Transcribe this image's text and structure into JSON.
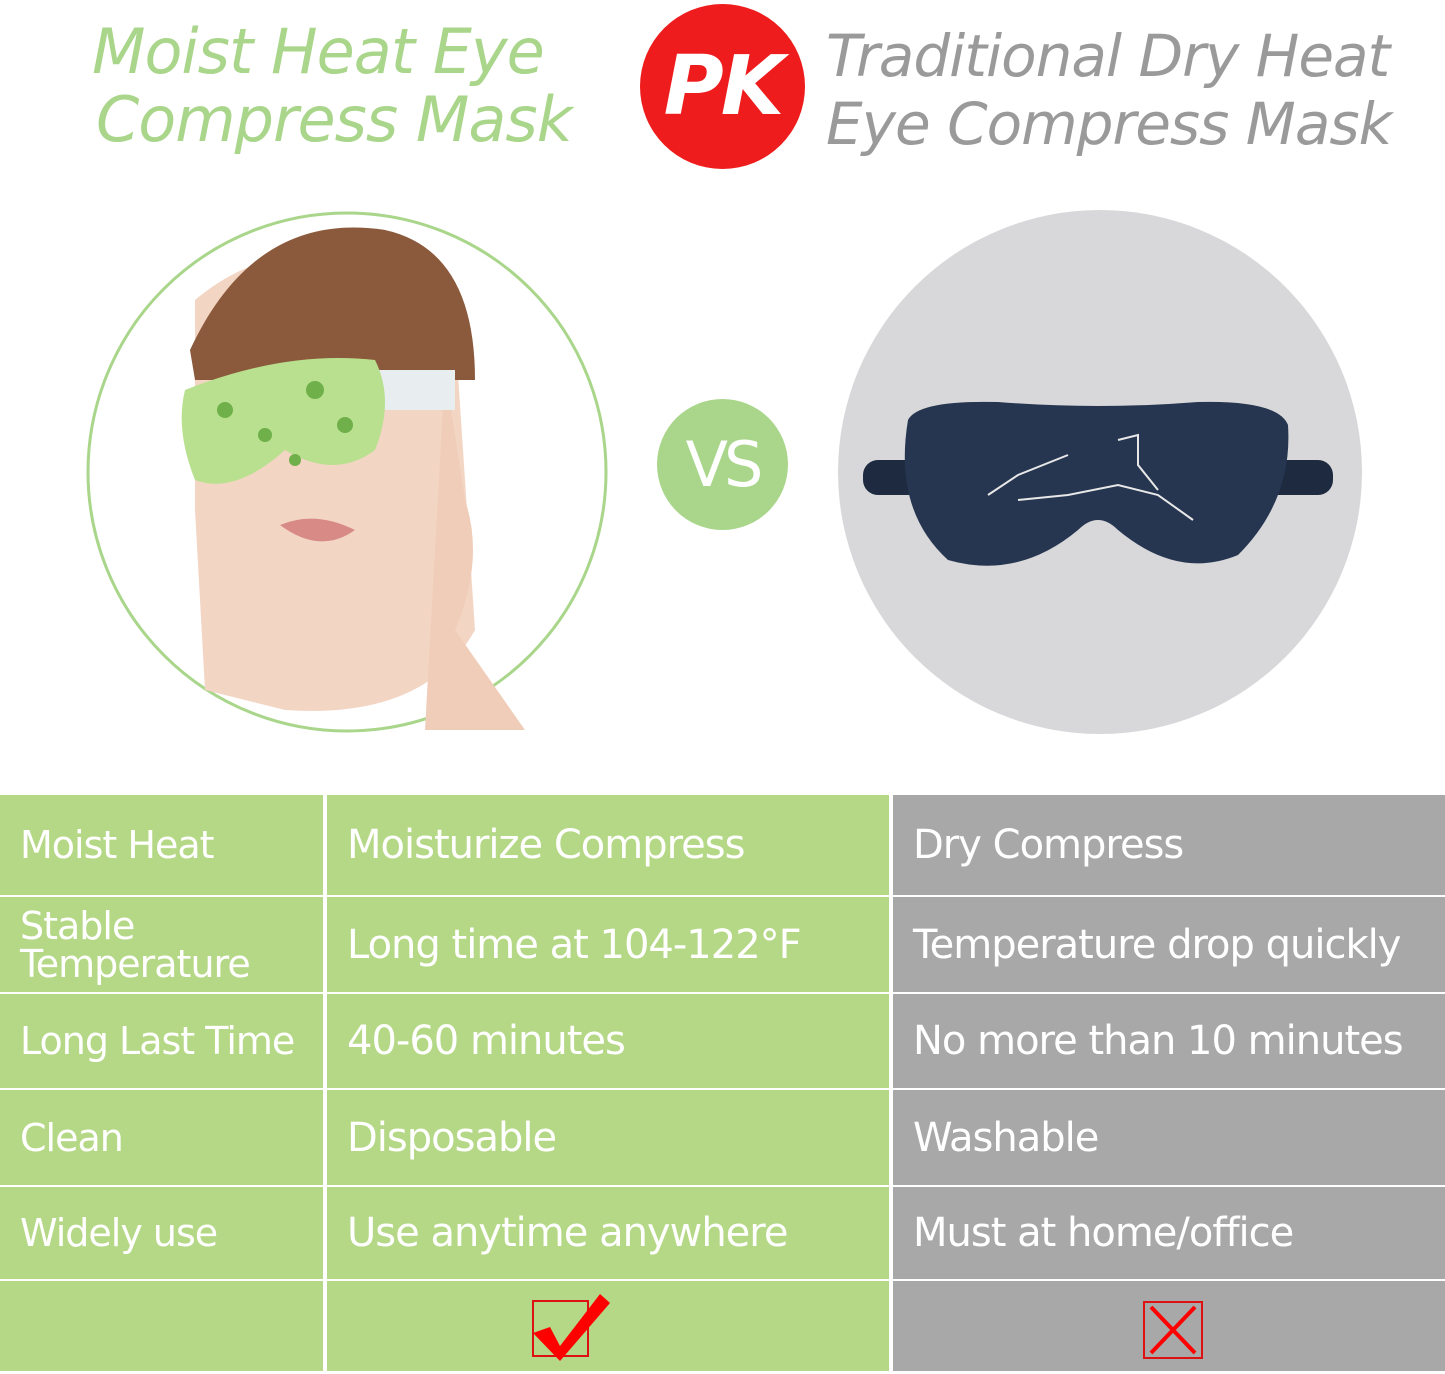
{
  "header": {
    "left_title_line1": "Moist Heat Eye",
    "left_title_line2": "Compress Mask",
    "pk_badge": "PK",
    "right_title_line1": "Traditional Dry Heat",
    "right_title_line2": "Eye Compress Mask"
  },
  "vs_badge": "VS",
  "colors": {
    "green": "#b5d886",
    "gray": "#a8a8a8",
    "title_green": "#a9d68a",
    "title_gray": "#9a9a9a",
    "red": "#ee1c1c"
  },
  "table": {
    "rows": [
      {
        "feature": "Moist Heat",
        "moist": "Moisturize Compress",
        "dry": "Dry Compress"
      },
      {
        "feature": "Stable Temperature",
        "moist": "Long time at 104-122°F",
        "dry": "Temperature drop quickly"
      },
      {
        "feature": "Long Last Time",
        "moist": "40-60 minutes",
        "dry": "No more than 10 minutes"
      },
      {
        "feature": "Clean",
        "moist": "Disposable",
        "dry": "Washable"
      },
      {
        "feature": "Widely use",
        "moist": "Use anytime anywhere",
        "dry": "Must at home/office"
      }
    ],
    "verdict": {
      "moist": "check-icon",
      "dry": "cross-icon"
    }
  }
}
